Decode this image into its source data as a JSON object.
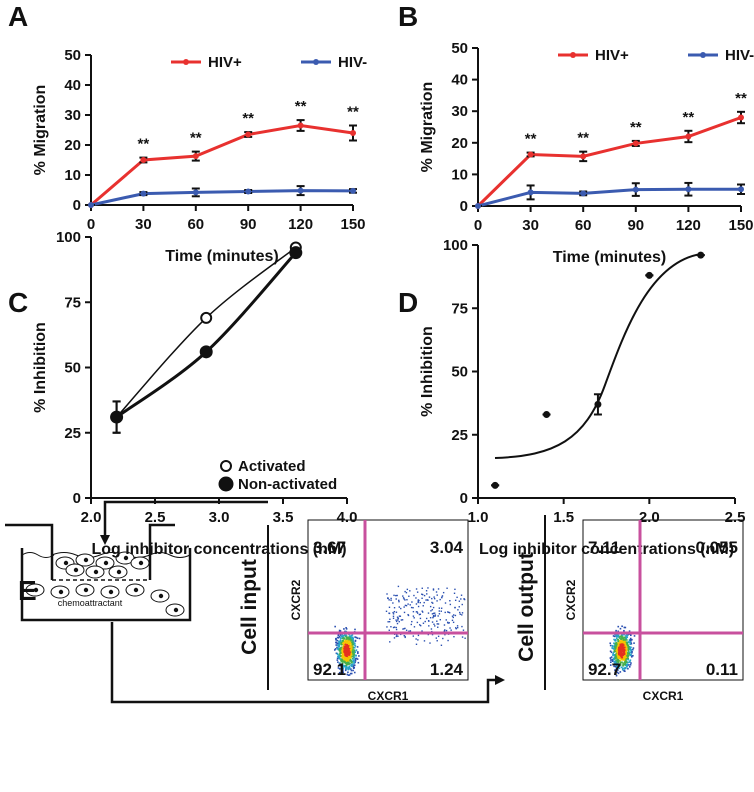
{
  "chart_data": [
    {
      "type": "line",
      "title": "A",
      "xlabel": "Time (minutes)",
      "ylabel": "% Migration",
      "x": [
        0,
        30,
        60,
        90,
        120,
        150
      ],
      "xlim": [
        0,
        150
      ],
      "xticks": [
        0,
        30,
        60,
        90,
        120,
        150
      ],
      "ylim": [
        0,
        50
      ],
      "yticks": [
        0,
        10,
        20,
        30,
        40,
        50
      ],
      "series": [
        {
          "name": "HIV+",
          "color": "#e8312f",
          "values": [
            0,
            15,
            16.3,
            23.5,
            26.5,
            24
          ],
          "errors": [
            0,
            0.8,
            1.5,
            0.8,
            1.8,
            2.5
          ]
        },
        {
          "name": "HIV-",
          "color": "#3b5bb0",
          "values": [
            0,
            3.8,
            4.2,
            4.5,
            4.8,
            4.7
          ],
          "errors": [
            0,
            0.5,
            1.3,
            0.5,
            1.5,
            0.6
          ]
        }
      ],
      "annotations": [
        {
          "text": "**",
          "x": 30
        },
        {
          "text": "**",
          "x": 60
        },
        {
          "text": "**",
          "x": 90
        },
        {
          "text": "**",
          "x": 120
        },
        {
          "text": "**",
          "x": 150
        }
      ]
    },
    {
      "type": "line",
      "title": "B",
      "xlabel": "Time (minutes)",
      "ylabel": "% Migration",
      "x": [
        0,
        30,
        60,
        90,
        120,
        150
      ],
      "xlim": [
        0,
        150
      ],
      "xticks": [
        0,
        30,
        60,
        90,
        120,
        150
      ],
      "ylim": [
        0,
        50
      ],
      "yticks": [
        0,
        10,
        20,
        30,
        40,
        50
      ],
      "series": [
        {
          "name": "HIV+",
          "color": "#e8312f",
          "values": [
            0,
            16.3,
            15.7,
            19.8,
            22,
            28
          ],
          "errors": [
            0,
            0.6,
            1.5,
            0.8,
            1.8,
            1.8
          ]
        },
        {
          "name": "HIV-",
          "color": "#3b5bb0",
          "values": [
            0,
            4.3,
            4.0,
            5.2,
            5.3,
            5.3
          ],
          "errors": [
            0,
            2.2,
            0.6,
            2.0,
            2.0,
            1.5
          ]
        }
      ],
      "annotations": [
        {
          "text": "**",
          "x": 30
        },
        {
          "text": "**",
          "x": 60
        },
        {
          "text": "**",
          "x": 90
        },
        {
          "text": "**",
          "x": 120
        },
        {
          "text": "**",
          "x": 150
        }
      ]
    },
    {
      "type": "scatter",
      "title": "C",
      "xlabel": "Log inhibitor concentrations (nM)",
      "ylabel": "% Inhibition",
      "xlim": [
        2,
        4
      ],
      "xticks": [
        {
          "value": 2,
          "label": "2.0"
        },
        2.5,
        {
          "value": 3,
          "label": "3.0"
        },
        3.5,
        {
          "value": 4,
          "label": "4.0"
        }
      ],
      "ylim": [
        0,
        100
      ],
      "yticks": [
        0,
        25,
        50,
        75,
        100
      ],
      "series": [
        {
          "name": "Activated",
          "marker": "open",
          "color": "#111111",
          "x": [
            2.2,
            2.9,
            3.6
          ],
          "values": [
            31,
            69,
            96
          ],
          "errors": [
            6,
            0,
            0
          ]
        },
        {
          "name": "Non-activated",
          "marker": "filled",
          "color": "#111111",
          "x": [
            2.2,
            2.9,
            3.6
          ],
          "values": [
            31,
            56,
            94
          ],
          "errors": [
            6,
            0,
            0
          ]
        }
      ]
    },
    {
      "type": "scatter",
      "title": "D",
      "xlabel": "Log inhibitor concentrations (nM)",
      "ylabel": "% Inhibition",
      "xlim": [
        1,
        2.5
      ],
      "xticks": [
        {
          "value": 1,
          "label": "1.0"
        },
        1.5,
        {
          "value": 2,
          "label": "2.0"
        },
        2.5
      ],
      "ylim": [
        0,
        100
      ],
      "yticks": [
        0,
        25,
        50,
        75,
        100
      ],
      "series": [
        {
          "marker": "small",
          "color": "#111111",
          "x": [
            1.1,
            1.4,
            1.7,
            2.0,
            2.3
          ],
          "values": [
            5,
            33,
            37,
            88,
            96
          ],
          "errors": [
            0,
            0,
            4,
            0,
            0
          ]
        }
      ]
    }
  ],
  "panel_e": {
    "title": "E",
    "well_label": "chemoattractant",
    "flow_plots": [
      {
        "label": "Cell input",
        "xlabel": "CXCR1",
        "ylabel": "CXCR2",
        "quadrants": [
          3.67,
          3.04,
          92.1,
          1.24
        ]
      },
      {
        "label": "Cell output",
        "xlabel": "CXCR1",
        "ylabel": "CXCR2",
        "quadrants": [
          7.11,
          0.055,
          92.7,
          0.11
        ]
      }
    ]
  }
}
